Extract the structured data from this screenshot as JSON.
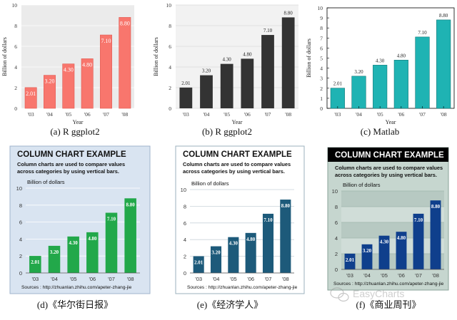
{
  "chart_data": [
    {
      "type": "bar",
      "style": "ggplot-red",
      "caption": "(a) R ggplot2",
      "xlabel": "Year",
      "ylabel": "Billion of dollars",
      "categories": [
        "'03",
        "'04",
        "'05",
        "'06",
        "'07",
        "'08"
      ],
      "values": [
        2.01,
        3.2,
        4.3,
        4.8,
        7.1,
        8.8
      ],
      "value_labels": [
        "2.01",
        "3.20",
        "4.30",
        "4.80",
        "7.10",
        "8.80"
      ],
      "ylim": [
        0,
        10
      ],
      "yticks": [
        "0",
        "2",
        "4",
        "6",
        "8",
        "10"
      ],
      "grid": true,
      "bar_color": "#F8766D",
      "label_position": "inside-top"
    },
    {
      "type": "bar",
      "style": "ggplot-dark",
      "caption": "(b) R ggplot2",
      "xlabel": "Year",
      "ylabel": "Billion of dollars",
      "categories": [
        "'03",
        "'04",
        "'05",
        "'06",
        "'07",
        "'08"
      ],
      "values": [
        2.01,
        3.2,
        4.3,
        4.8,
        7.1,
        8.8
      ],
      "value_labels": [
        "2.01",
        "3.20",
        "4.30",
        "4.80",
        "7.10",
        "8.80"
      ],
      "ylim": [
        0,
        10
      ],
      "yticks": [
        "0",
        "2",
        "4",
        "6",
        "8",
        "10"
      ],
      "grid": true,
      "bar_color": "#333333",
      "label_position": "above"
    },
    {
      "type": "bar",
      "style": "matlab",
      "caption": "(c) Matlab",
      "xlabel": "Year",
      "ylabel": "Billion of dollars",
      "categories": [
        "'03",
        "'04",
        "'05",
        "'06",
        "'07",
        "'08"
      ],
      "values": [
        2.01,
        3.2,
        4.3,
        4.8,
        7.1,
        8.8
      ],
      "value_labels": [
        "2.01",
        "3.20",
        "4.30",
        "4.80",
        "7.10",
        "8.80"
      ],
      "ylim": [
        0,
        10
      ],
      "yticks": [
        "0",
        "1",
        "2",
        "3",
        "4",
        "5",
        "6",
        "7",
        "8",
        "9",
        "10"
      ],
      "grid": false,
      "bar_color": "#1FB3B3",
      "label_position": "above"
    },
    {
      "type": "bar",
      "style": "wsj",
      "caption": "(d)《华尔街日报》",
      "title": "COLUMN CHART EXAMPLE",
      "subtitle_lines": [
        "Column charts are used to compare values",
        "across categories by using vertical bars."
      ],
      "unit_label": "Billion of dollars",
      "source": "Sources : http://zhuanlan.zhihu.com/apeter-zhang-jie",
      "categories": [
        "'03",
        "'04",
        "'05",
        "'06",
        "'07",
        "'08"
      ],
      "values": [
        2.01,
        3.2,
        4.3,
        4.8,
        7.1,
        8.8
      ],
      "value_labels": [
        "2.01",
        "3.20",
        "4.30",
        "4.80",
        "7.10",
        "8.80"
      ],
      "ylim": [
        0,
        10
      ],
      "yticks": [
        "0",
        "2",
        "4",
        "6",
        "8",
        "10"
      ],
      "grid": true,
      "bar_color": "#22A84A",
      "background": "#D9E4F1",
      "label_position": "inside-top"
    },
    {
      "type": "bar",
      "style": "economist",
      "caption": "(e)《经济学人》",
      "title": "COLUMN CHART EXAMPLE",
      "subtitle_lines": [
        "Column charts are used to compare values",
        "across categories by using vertical bars."
      ],
      "unit_label": "Billion of dollars",
      "source": "Sources : http://zhuanlan.zhihu.com/apeter-zhang-jie",
      "categories": [
        "'03",
        "'04",
        "'05",
        "'06",
        "'07",
        "'08"
      ],
      "values": [
        2.01,
        3.2,
        4.3,
        4.8,
        7.1,
        8.8
      ],
      "value_labels": [
        "2.01",
        "3.20",
        "4.30",
        "4.80",
        "7.10",
        "8.80"
      ],
      "ylim": [
        0,
        10
      ],
      "yticks": [
        "0",
        "2",
        "4",
        "6",
        "8",
        "10"
      ],
      "grid": true,
      "bar_color": "#1D5A7A",
      "background": "#FFFFFF",
      "label_position": "inside-top"
    },
    {
      "type": "bar",
      "style": "businessweek",
      "caption": "(f)《商业周刊》",
      "title": "COLUMN CHART EXAMPLE",
      "subtitle_lines": [
        "Column charts are used to compare values",
        "across categories by using vertical bars."
      ],
      "unit_label": "Billion of dollars",
      "source": "Sources : http://zhuanlan.zhihu.com/apeter-zhang-jie",
      "categories": [
        "'03",
        "'04",
        "'05",
        "'06",
        "'07",
        "'08"
      ],
      "values": [
        2.01,
        3.2,
        4.3,
        4.8,
        7.1,
        8.8
      ],
      "value_labels": [
        "2.01",
        "3.20",
        "4.30",
        "4.80",
        "7.10",
        "8.80"
      ],
      "ylim": [
        0,
        10
      ],
      "yticks": [
        "0",
        "2",
        "4",
        "6",
        "8",
        "10"
      ],
      "grid": true,
      "bar_color": "#0F3F8C",
      "background": "#C6D6CF",
      "label_position": "inside-top"
    }
  ],
  "watermark": {
    "text": "EasyCharts",
    "icon": "wechat-logo-icon"
  }
}
